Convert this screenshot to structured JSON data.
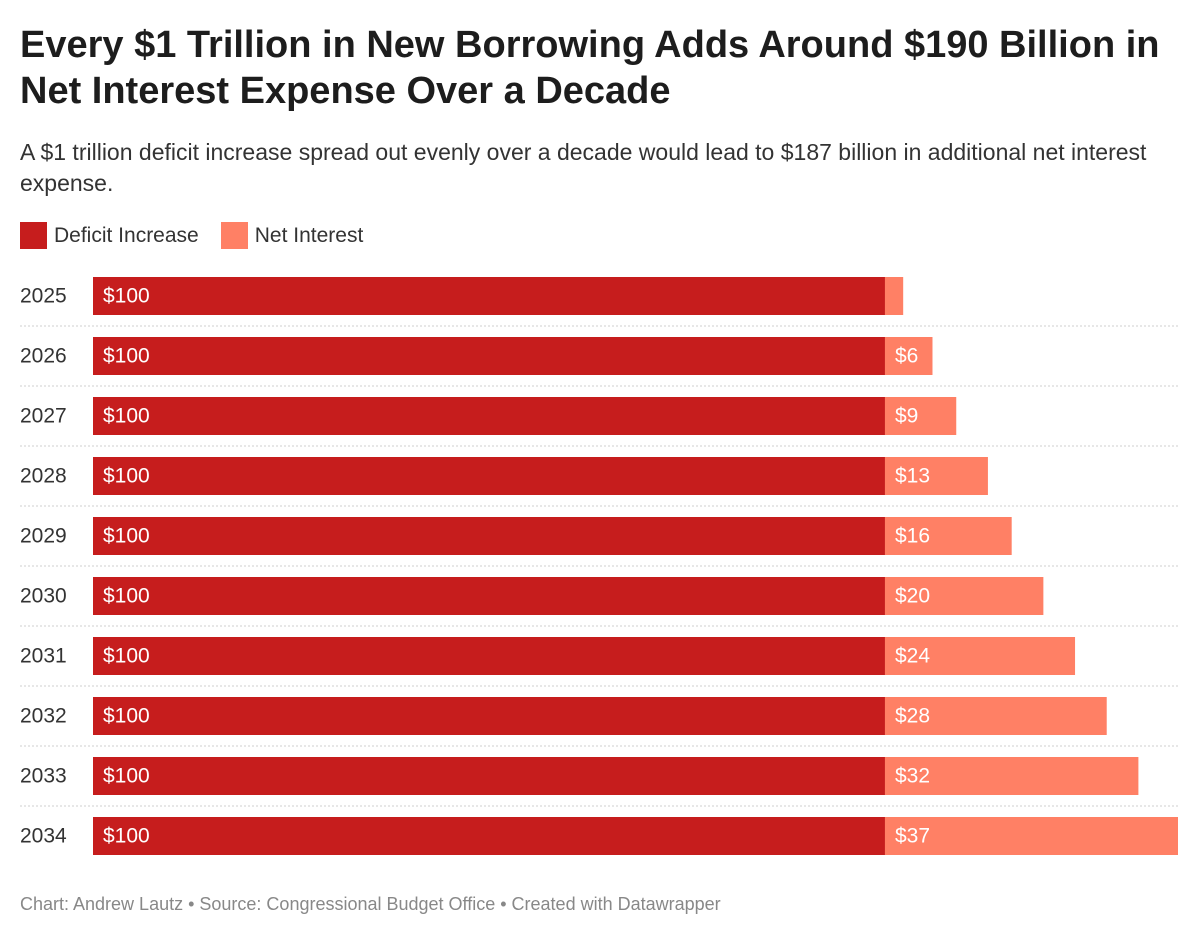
{
  "title": "Every $1 Trillion in New Borrowing Adds Around $190 Billion in Net Interest Expense Over a Decade",
  "subtitle": "A $1 trillion deficit increase spread out evenly over a decade would lead to $187 billion in additional net interest expense.",
  "legend": [
    {
      "label": "Deficit Increase",
      "color": "#c61d1d"
    },
    {
      "label": "Net Interest",
      "color": "#ff8065"
    }
  ],
  "footer": "Chart: Andrew Lautz • Source: Congressional Budget Office • Created with Datawrapper",
  "chart_data": {
    "type": "bar",
    "orientation": "horizontal",
    "stacked": true,
    "categories": [
      "2025",
      "2026",
      "2027",
      "2028",
      "2029",
      "2030",
      "2031",
      "2032",
      "2033",
      "2034"
    ],
    "series": [
      {
        "name": "Deficit Increase",
        "color": "#c61d1d",
        "values": [
          100,
          100,
          100,
          100,
          100,
          100,
          100,
          100,
          100,
          100
        ],
        "labels": [
          "$100",
          "$100",
          "$100",
          "$100",
          "$100",
          "$100",
          "$100",
          "$100",
          "$100",
          "$100"
        ]
      },
      {
        "name": "Net Interest",
        "color": "#ff8065",
        "values": [
          2.3,
          6,
          9,
          13,
          16,
          20,
          24,
          28,
          32,
          37
        ],
        "labels": [
          "",
          "$6",
          "$9",
          "$13",
          "$16",
          "$20",
          "$24",
          "$28",
          "$32",
          "$37"
        ]
      }
    ],
    "xlim": [
      0,
      137
    ],
    "grid": false,
    "legend_position": "top-left"
  }
}
